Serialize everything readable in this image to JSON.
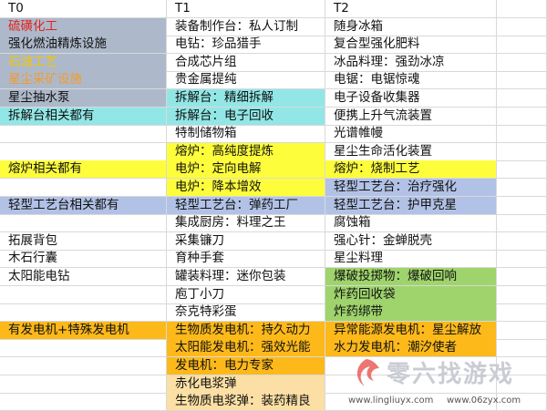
{
  "table": {
    "header": [
      "T0",
      "T1",
      "T2"
    ],
    "rows": [
      [
        "硫磺化工",
        "装备制作台：私人订制",
        "随身冰箱"
      ],
      [
        "强化燃油精炼设施",
        "电钻：珍品猎手",
        "复合型强化肥料"
      ],
      [
        "石油工艺",
        "合成芯片组",
        "冰品料理：强劲冰凉"
      ],
      [
        "星尘采矿设施",
        "贵金属提纯",
        "电锯：电锯惊魂"
      ],
      [
        "星尘抽水泵",
        "拆解台：精细拆解",
        "电子设备收集器"
      ],
      [
        "拆解台相关都有",
        "拆解台：电子回收",
        "便携上升气流装置"
      ],
      [
        null,
        "特制储物箱",
        "光谱帷幔"
      ],
      [
        null,
        "熔炉：高纯度提炼",
        "星尘生命活化装置"
      ],
      [
        "熔炉相关都有",
        "电炉：定向电解",
        "熔炉：烧制工艺"
      ],
      [
        null,
        "电炉：降本增效",
        "轻型工艺台：治疗强化"
      ],
      [
        "轻型工艺台相关都有",
        "轻型工艺台：弹药工厂",
        "轻型工艺台：护甲克星"
      ],
      [
        null,
        "集成厨房：料理之王",
        "腐蚀箱"
      ],
      [
        "拓展背包",
        "采集镰刀",
        "强心针：金蝉脱壳"
      ],
      [
        "木石行囊",
        "育种手套",
        "星尘料理"
      ],
      [
        "太阳能电钻",
        "罐装料理：迷你包装",
        "爆破投掷物：爆破回响"
      ],
      [
        null,
        "庖丁小刀",
        "炸药回收袋"
      ],
      [
        null,
        "奈克特彩蛋",
        "炸药绑带"
      ],
      [
        "有发电机+特殊发电机",
        "生物质发电机：持久动力",
        "异常能源发电机：星尘解放"
      ],
      [
        null,
        "太阳能发电机：强效光能",
        "水力发电机：潮汐使者"
      ],
      [
        null,
        "发电机：电力专家",
        null
      ],
      [
        null,
        "赤化电浆弹",
        null
      ],
      [
        null,
        "生物质电浆弹：装药精良",
        null
      ]
    ]
  },
  "watermark": {
    "logo": "零六找游戏",
    "url1": "www.lingliuyx.com",
    "url2": "www.06zyx.com"
  }
}
